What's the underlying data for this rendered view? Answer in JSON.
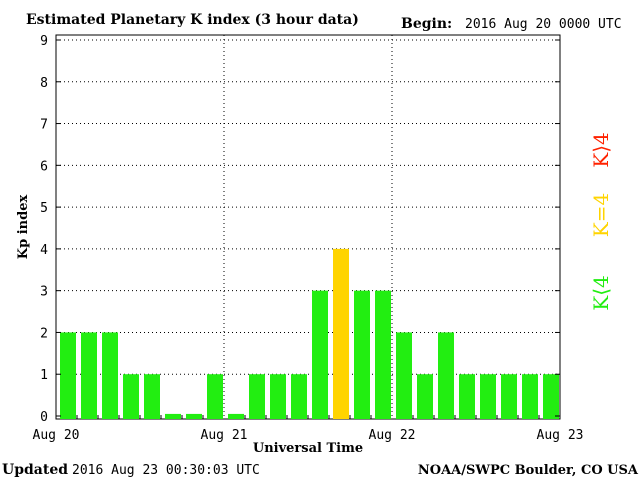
{
  "header": {
    "title": "Estimated Planetary K index (3 hour data)",
    "begin_label": "Begin:",
    "begin_value": "2016 Aug 20 0000 UTC"
  },
  "footer": {
    "updated_label": "Updated",
    "updated_value": "2016 Aug 23 00:30:03 UTC",
    "credit": "NOAA/SWPC Boulder, CO USA"
  },
  "legend": [
    {
      "label": "K⟩4",
      "color": "#ff2200"
    },
    {
      "label": "K=4",
      "color": "#ffd400"
    },
    {
      "label": "K⟨4",
      "color": "#22ee11"
    }
  ],
  "colors": {
    "below": "#22ee11",
    "equal": "#ffd400",
    "above": "#ff2200"
  },
  "chart_data": {
    "type": "bar",
    "xlabel": "Universal Time",
    "ylabel": "Kp index",
    "ylim": [
      0,
      9
    ],
    "yticks": [
      0,
      1,
      2,
      3,
      4,
      5,
      6,
      7,
      8,
      9
    ],
    "xticks": [
      "Aug 20",
      "Aug 21",
      "Aug 22",
      "Aug 23"
    ],
    "grid": true,
    "values": [
      2,
      2,
      2,
      1,
      1,
      0.05,
      0.05,
      1,
      0.05,
      1,
      1,
      1,
      3,
      4,
      3,
      3,
      2,
      1,
      2,
      1,
      1,
      1,
      1,
      1
    ]
  }
}
